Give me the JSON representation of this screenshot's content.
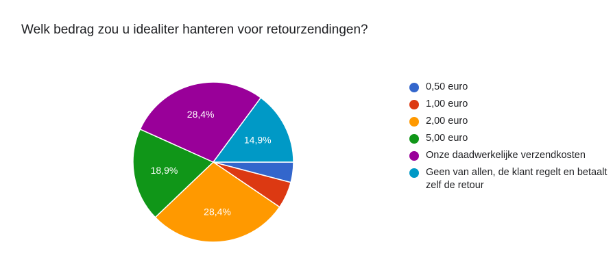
{
  "chart_data": {
    "type": "pie",
    "title": "Welk bedrag zou u idealiter hanteren voor retourzendingen?",
    "legend_position": "right",
    "slices": [
      {
        "label": "0,50 euro",
        "value": 4.1,
        "color": "#3366cc",
        "value_label": ""
      },
      {
        "label": "1,00 euro",
        "value": 5.4,
        "color": "#dc3912",
        "value_label": ""
      },
      {
        "label": "2,00 euro",
        "value": 28.4,
        "color": "#ff9900",
        "value_label": "28,4%"
      },
      {
        "label": "5,00 euro",
        "value": 18.9,
        "color": "#109618",
        "value_label": "18,9%"
      },
      {
        "label": "Onze daadwerkelijke verzendkosten",
        "value": 28.4,
        "color": "#990099",
        "value_label": "28,4%"
      },
      {
        "label": "Geen van allen, de klant regelt en betaalt zelf de retour",
        "value": 14.9,
        "color": "#0099c6",
        "value_label": "14,9%"
      }
    ]
  }
}
